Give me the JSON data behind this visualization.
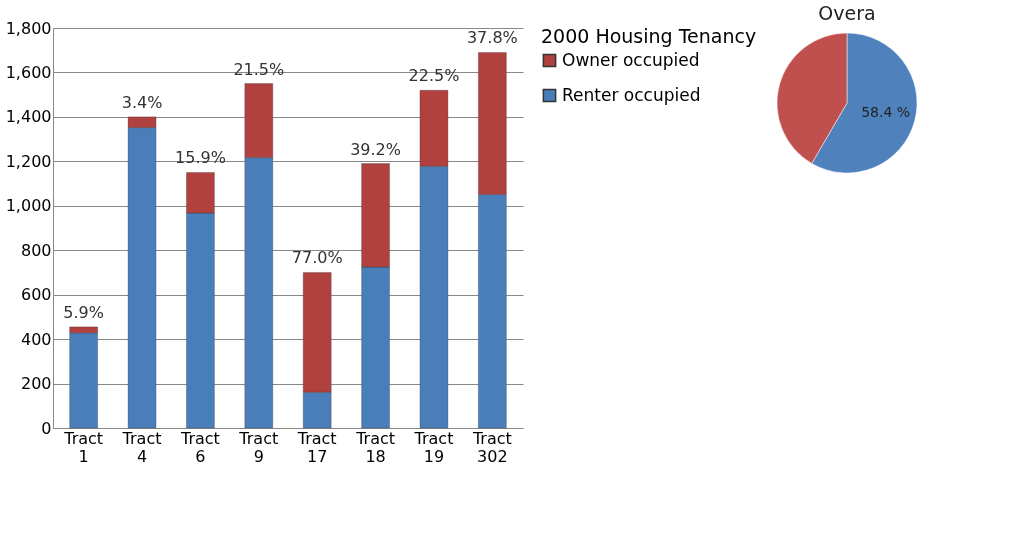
{
  "chart_data": [
    {
      "type": "bar",
      "stacked": true,
      "legend_title": "2000 Housing Tenancy",
      "legend": "top right",
      "grid": "y",
      "categories": [
        "Tract 1",
        "Tract 4",
        "Tract 6",
        "Tract 9",
        "Tract 17",
        "Tract 18",
        "Tract 19",
        "Tract 302"
      ],
      "ylim": [
        0,
        1800
      ],
      "yticks": [
        0,
        {
          "value": 200,
          "label": "200"
        },
        {
          "value": 400,
          "label": "400"
        },
        {
          "value": 600,
          "label": "600"
        },
        {
          "value": 800,
          "label": "800"
        },
        {
          "value": 1000,
          "label": "1,000"
        },
        {
          "value": 1200,
          "label": "1,200"
        },
        {
          "value": 1400,
          "label": "1,400"
        },
        {
          "value": 1600,
          "label": "1,600"
        },
        {
          "value": 1800,
          "label": "1,800"
        }
      ],
      "series": [
        {
          "name": "Renter occupied",
          "color": "#4a7ebb",
          "values": [
            428,
            1352,
            967,
            1217,
            161,
            724,
            1178,
            1051
          ]
        },
        {
          "name": "Owner occupied",
          "color": "#b0413e",
          "values": [
            27,
            48,
            183,
            333,
            539,
            466,
            342,
            639
          ]
        }
      ],
      "annotations": [
        {
          "text": "5.9%",
          "x": "Tract 1",
          "y": 455
        },
        {
          "text": "3.4%",
          "x": "Tract 4",
          "y": 1400
        },
        {
          "text": "15.9%",
          "x": "Tract 6",
          "y": 1150
        },
        {
          "text": "21.5%",
          "x": "Tract 9",
          "y": 1550
        },
        {
          "text": "77.0%",
          "x": "Tract 17",
          "y": 700
        },
        {
          "text": "39.2%",
          "x": "Tract 18",
          "y": 1190
        },
        {
          "text": "22.5%",
          "x": "Tract 19",
          "y": 1520
        },
        {
          "text": "37.8%",
          "x": "Tract 302",
          "y": 1690
        }
      ]
    },
    {
      "type": "pie",
      "title": "Overa",
      "categories": [
        null,
        null
      ],
      "values": [
        58.4,
        41.6
      ],
      "colors": [
        "#4f81bd",
        "#c0504d"
      ],
      "value_labels": [
        "58.4 %",
        null
      ]
    }
  ]
}
